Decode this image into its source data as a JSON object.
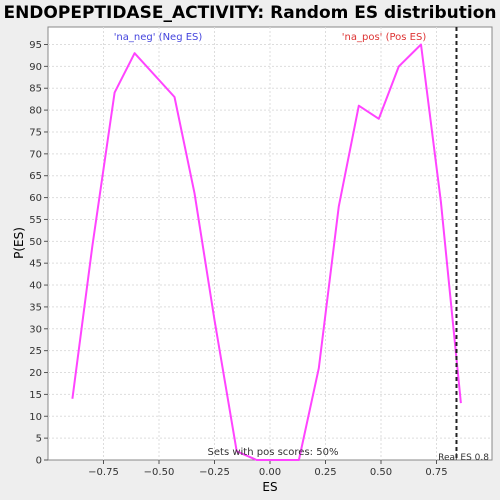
{
  "chart_data": {
    "type": "line",
    "title": "ENDOPEPTIDASE_ACTIVITY: Random ES distribution",
    "xlabel": "ES",
    "ylabel": "P(ES)",
    "xlim": [
      -1.0,
      1.0
    ],
    "ylim": [
      0,
      99
    ],
    "x_ticks": [
      -0.75,
      -0.5,
      -0.25,
      0.0,
      0.25,
      0.5,
      0.75
    ],
    "x_tick_labels": [
      "−0.75",
      "−0.50",
      "−0.25",
      "0.00",
      "0.25",
      "0.50",
      "0.75"
    ],
    "y_ticks": [
      0,
      5,
      10,
      15,
      20,
      25,
      30,
      35,
      40,
      45,
      50,
      55,
      60,
      65,
      70,
      75,
      80,
      85,
      90,
      95
    ],
    "grid": true,
    "series": [
      {
        "color": "#ff44ff",
        "x": [
          -0.89,
          -0.8,
          -0.7,
          -0.61,
          -0.43,
          -0.34,
          -0.25,
          -0.15,
          -0.06,
          0.03,
          0.13,
          0.22,
          0.31,
          0.4,
          0.49,
          0.58,
          0.68,
          0.77,
          0.86
        ],
        "y": [
          14,
          49,
          84,
          93,
          83,
          61,
          32,
          2,
          0,
          0,
          0,
          21,
          58,
          81,
          78,
          90,
          95,
          59,
          13
        ]
      }
    ],
    "annotations": {
      "neg_label": "'na_neg' (Neg ES)",
      "neg_color": "#4444dd",
      "pos_label": "'na_pos' (Pos ES)",
      "pos_color": "#dd3333",
      "sets_text": "Sets with pos scores: 50%",
      "real_es_text": "Real ES 0.8",
      "real_es_x": 0.84
    }
  }
}
